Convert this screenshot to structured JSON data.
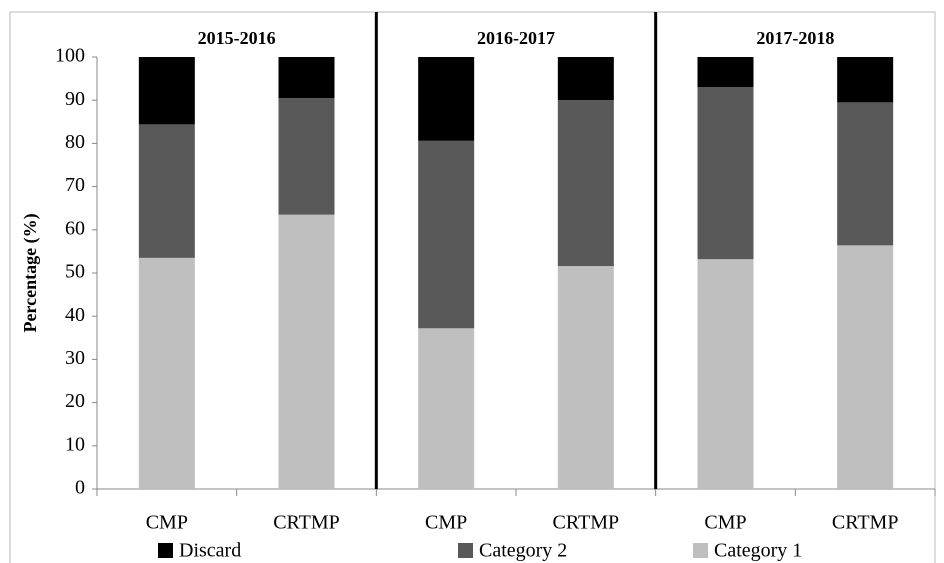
{
  "chart_data": {
    "type": "stacked_bar",
    "y_label": "Percentage (%)",
    "groups": [
      "2015-2016",
      "2016-2017",
      "2017-2018"
    ],
    "categories": [
      "CMP",
      "CRTMP",
      "CMP",
      "CRTMP",
      "CMP",
      "CRTMP"
    ],
    "series": [
      {
        "name": "Category 1",
        "color": "#bfbfbf",
        "values": [
          53.5,
          63.5,
          37.2,
          51.6,
          53.2,
          56.4
        ]
      },
      {
        "name": "Category 2",
        "color": "#595959",
        "values": [
          30.9,
          27,
          43.4,
          38.4,
          39.8,
          33.1
        ]
      },
      {
        "name": "Discard",
        "color": "#000000",
        "values": [
          15.6,
          9.5,
          19.4,
          10,
          7,
          10.5
        ]
      }
    ],
    "legend_order": [
      2,
      1,
      0
    ],
    "ylim": [
      0,
      100
    ],
    "yticks": [
      0,
      10,
      20,
      30,
      40,
      50,
      60,
      70,
      80,
      90,
      100
    ]
  }
}
